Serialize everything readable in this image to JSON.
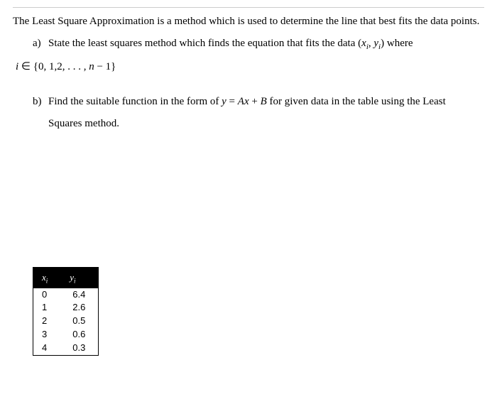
{
  "intro": "The Least Square Approximation is a method which is used to determine the line that best fits the data points.",
  "partA": {
    "label": "a)",
    "text1": "State the least squares method which finds the equation that fits the data ",
    "math1": "(x",
    "sub1": "i",
    "math1b": ", y",
    "sub1b": "i",
    "math1c": ")",
    "text2": "   where",
    "line2a": "i",
    "line2b": " ∈ {0, 1,2, . . . , ",
    "line2c": "n",
    "line2d": " − 1}"
  },
  "partB": {
    "label": "b)",
    "text1": "Find the suitable function in the form of  ",
    "eq_y": "y",
    "eq_mid": " = ",
    "eq_A": "A",
    "eq_x": "x",
    "eq_plus": " + ",
    "eq_B": "B",
    "text2": "  for given data in the table using the Least",
    "line2": "Squares method."
  },
  "table": {
    "head_x": "x",
    "head_x_sub": "i",
    "head_y": "y",
    "head_y_sub": "i",
    "rows": [
      {
        "x": "0",
        "y": "6.4"
      },
      {
        "x": "1",
        "y": "2.6"
      },
      {
        "x": "2",
        "y": "0.5"
      },
      {
        "x": "3",
        "y": "0.6"
      },
      {
        "x": "4",
        "y": "0.3"
      }
    ]
  }
}
